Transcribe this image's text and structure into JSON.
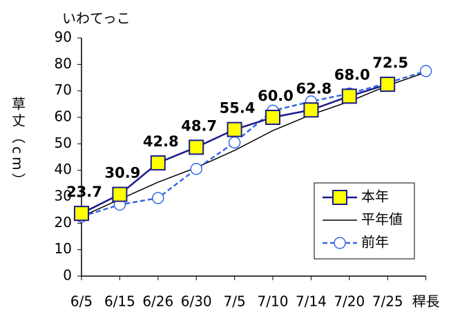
{
  "chart_data": {
    "type": "line",
    "title": "いわてっこ",
    "y_label": "草丈（cm）",
    "categories": [
      "6/5",
      "6/15",
      "6/26",
      "6/30",
      "7/5",
      "7/10",
      "7/14",
      "7/20",
      "7/25",
      "稈長"
    ],
    "series": [
      {
        "name": "本年",
        "color": "#1a1a8c",
        "marker": "square",
        "marker_color": "#ffff00",
        "dashed": false,
        "values": [
          23.7,
          30.9,
          42.8,
          48.7,
          55.4,
          60.0,
          62.8,
          68.0,
          72.5,
          null
        ],
        "value_labels": [
          "23.7",
          "30.9",
          "42.8",
          "48.7",
          "55.4",
          "60.0",
          "62.8",
          "68.0",
          "72.5",
          null
        ]
      },
      {
        "name": "平年値",
        "color": "#000000",
        "marker": "none",
        "dashed": false,
        "values": [
          22.5,
          29,
          35.5,
          41,
          47.5,
          55,
          61,
          66,
          72,
          77
        ]
      },
      {
        "name": "前年",
        "color": "#3366e6",
        "marker": "circle",
        "marker_color": "#ffffff",
        "dashed": true,
        "values": [
          22.5,
          27,
          29.5,
          40.5,
          50.5,
          62.5,
          66,
          69,
          73,
          77.5
        ]
      }
    ],
    "ylim": [
      0,
      90
    ],
    "yticks": [
      0,
      10,
      20,
      30,
      40,
      50,
      60,
      70,
      80,
      90
    ],
    "legend_position": "lower right",
    "grid": false
  }
}
